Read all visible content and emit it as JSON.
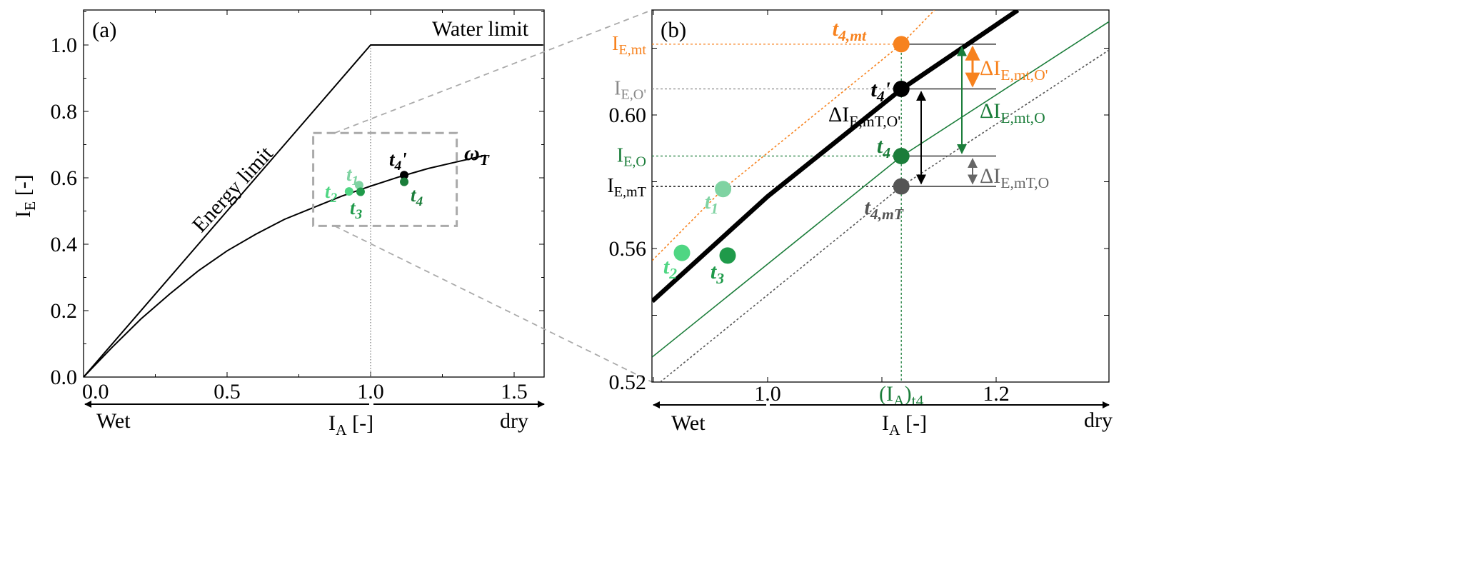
{
  "colors": {
    "black": "#000000",
    "orange": "#f7821e",
    "green_dark": "#1b7d3a",
    "green_mid": "#1f9a4a",
    "green_light": "#4fd683",
    "green_pale": "#7fd3a2",
    "gray": "#666666",
    "gray_light": "#aaaaaa"
  },
  "chart_data": [
    {
      "panel_label": "(a)",
      "type": "line",
      "xlim": [
        0,
        1.6
      ],
      "ylim": [
        0,
        1.1
      ],
      "xticks": [
        0,
        0.5,
        1.0,
        1.5
      ],
      "xtick_labels": [
        "0.0",
        "0.5",
        "1.0",
        "1.5"
      ],
      "yticks": [
        0,
        0.2,
        0.4,
        0.6,
        0.8,
        1.0
      ],
      "ytick_labels": [
        "0.0",
        "0.2",
        "0.4",
        "0.6",
        "0.8",
        "1.0"
      ],
      "xlabel": {
        "main": "I",
        "sub": "A",
        "rest": " [-]"
      },
      "ylabel": {
        "main": "I",
        "sub": "E",
        "rest": " [-]"
      },
      "direction_labels": {
        "left": "Wet",
        "right": "dry"
      },
      "grid": false,
      "series": [
        {
          "name": "limits",
          "style": "solid",
          "x": [
            0,
            1.0,
            1.6
          ],
          "y": [
            0,
            1.0,
            1.0
          ]
        },
        {
          "name": "ω_T curve",
          "style": "solid",
          "x": [
            0,
            0.1,
            0.2,
            0.3,
            0.4,
            0.5,
            0.6,
            0.7,
            0.8,
            0.9,
            1.0,
            1.1,
            1.2,
            1.3,
            1.4
          ],
          "y": [
            0,
            0.09,
            0.175,
            0.25,
            0.32,
            0.38,
            0.43,
            0.475,
            0.51,
            0.545,
            0.575,
            0.603,
            0.628,
            0.648,
            0.668
          ]
        }
      ],
      "annotations": {
        "energy_limit": "Energy limit",
        "water_limit": "Water limit",
        "omega": {
          "main": "ω",
          "sub": "T"
        }
      },
      "points": [
        {
          "label": "t",
          "sub": "1",
          "x": 0.96,
          "y": 0.578,
          "color": "#7fd3a2"
        },
        {
          "label": "t",
          "sub": "2",
          "x": 0.925,
          "y": 0.559,
          "color": "#4fd683"
        },
        {
          "label": "t",
          "sub": "3",
          "x": 0.965,
          "y": 0.558,
          "color": "#1f9a4a"
        },
        {
          "label": "t",
          "sub": "4",
          "prime": "'",
          "x": 1.117,
          "y": 0.608,
          "color": "#000000"
        },
        {
          "label": "t",
          "sub": "4",
          "x": 1.117,
          "y": 0.588,
          "color": "#1b7d3a"
        }
      ],
      "zoom_box": {
        "xlim": [
          0.8,
          1.3
        ],
        "ylim": [
          0.455,
          0.735
        ]
      }
    },
    {
      "panel_label": "(b)",
      "type": "line",
      "xlim": [
        0.899,
        1.299
      ],
      "ylim": [
        0.52,
        0.631
      ],
      "xticks": [
        1.0,
        1.2
      ],
      "xtick_labels": [
        "1.0",
        "1.2"
      ],
      "special_xtick": {
        "main": "(I",
        "sub1": "A",
        "close": ")",
        "sub2": "t4",
        "x": 1.117
      },
      "yticks": [
        0.52,
        0.56,
        0.6
      ],
      "ytick_labels": [
        "0.52",
        "0.56",
        "0.60"
      ],
      "xlabel": {
        "main": "I",
        "sub": "A",
        "rest": " [-]"
      },
      "direction_labels": {
        "left": "Wet",
        "right": "dry"
      },
      "grid": false,
      "series": [
        {
          "name": "ω_T curve",
          "style": "thick",
          "color": "#000000",
          "x": [
            0.899,
            1.0,
            1.117,
            1.219
          ],
          "y": [
            0.5442,
            0.5756,
            0.6077,
            0.6314
          ]
        },
        {
          "name": "mt curve",
          "style": "dotted",
          "color": "#f7821e",
          "x": [
            0.899,
            0.961,
            1.117,
            1.146
          ],
          "y": [
            0.5564,
            0.5778,
            0.6212,
            0.6314
          ]
        },
        {
          "name": "O curve",
          "style": "thin",
          "color": "#1b7d3a",
          "x": [
            0.899,
            1.117,
            1.299
          ],
          "y": [
            0.5275,
            0.5876,
            0.628
          ]
        },
        {
          "name": "mT curve",
          "style": "dotted",
          "color": "#555555",
          "x": [
            0.906,
            1.117,
            1.299
          ],
          "y": [
            0.52,
            0.5786,
            0.6195
          ]
        }
      ],
      "levels": [
        {
          "main": "I",
          "sub": "E,mt",
          "y": 0.6212,
          "color": "#f7821e"
        },
        {
          "main": "I",
          "sub": "E,O'",
          "y": 0.6078,
          "color": "#888888"
        },
        {
          "main": "I",
          "sub": "E,O",
          "y": 0.5877,
          "color": "#1b7d3a"
        },
        {
          "main": "I",
          "sub": "E,mT",
          "y": 0.5786,
          "color": "#000000"
        }
      ],
      "points": [
        {
          "label": "t",
          "sub": "4,mt",
          "x": 1.117,
          "y": 0.6212,
          "color": "#f7821e"
        },
        {
          "label": "t",
          "sub": "4",
          "prime": "'",
          "x": 1.117,
          "y": 0.6078,
          "color": "#000000"
        },
        {
          "label": "t",
          "sub": "4",
          "x": 1.117,
          "y": 0.5877,
          "color": "#1b7d3a"
        },
        {
          "label": "t",
          "sub": "4,mT",
          "x": 1.117,
          "y": 0.5786,
          "color": "#555555"
        },
        {
          "label": "t",
          "sub": "1",
          "x": 0.961,
          "y": 0.5778,
          "color": "#7fd3a2"
        },
        {
          "label": "t",
          "sub": "2",
          "x": 0.925,
          "y": 0.5587,
          "color": "#4fd683"
        },
        {
          "label": "t",
          "sub": "3",
          "x": 0.965,
          "y": 0.5579,
          "color": "#1f9a4a"
        }
      ],
      "differences": [
        {
          "main": "ΔI",
          "sub": "E,mt,O'",
          "from": 0.6212,
          "to": 0.6078,
          "color": "#f7821e"
        },
        {
          "main": "ΔI",
          "sub": "E,mt,O",
          "from": 0.6212,
          "to": 0.5877,
          "color": "#1b7d3a"
        },
        {
          "main": "ΔI",
          "sub": "E,mT,O'",
          "from": 0.6078,
          "to": 0.5786,
          "color": "#000000"
        },
        {
          "main": "ΔI",
          "sub": "E,mT,O",
          "from": 0.5877,
          "to": 0.5786,
          "color": "#666666"
        }
      ]
    }
  ]
}
